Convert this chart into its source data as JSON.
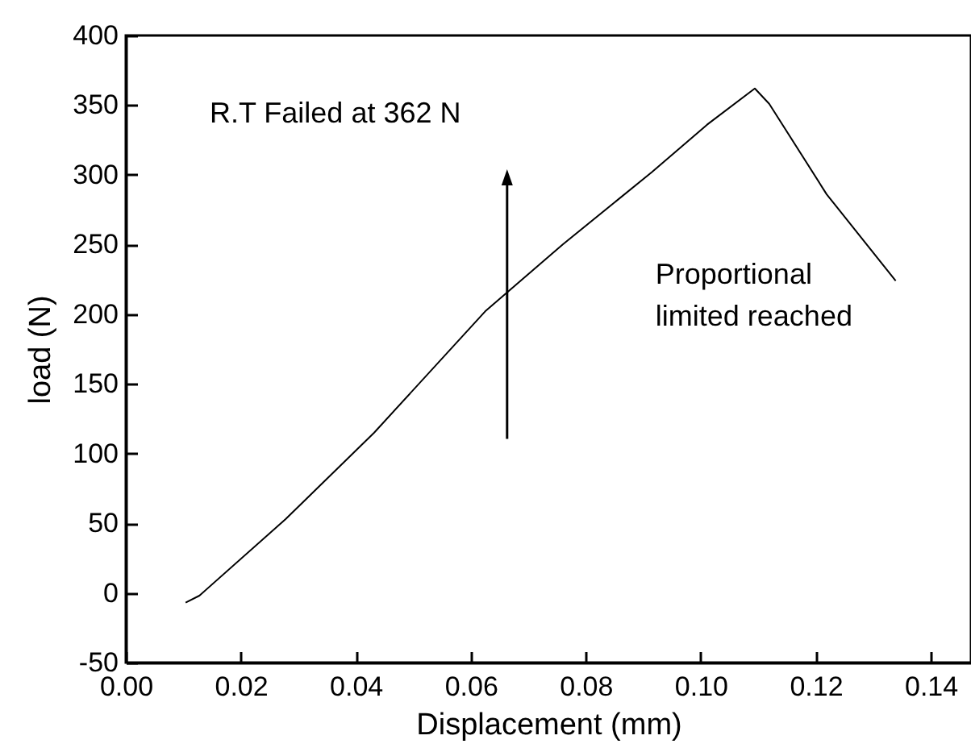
{
  "chart_data": {
    "type": "line",
    "xlabel": "Displacement (mm)",
    "ylabel": "load (N)",
    "x": [
      0.0104,
      0.0128,
      0.0278,
      0.0432,
      0.0625,
      0.076,
      0.0915,
      0.1011,
      0.1094,
      0.1119,
      0.1219,
      0.1339
    ],
    "series": [
      {
        "color": "#000000",
        "values": [
          -7,
          -2,
          53,
          115,
          202,
          250,
          302,
          336,
          362,
          351,
          286,
          224
        ]
      }
    ],
    "xlim": [
      0,
      0.147
    ],
    "xticks": [
      {
        "value": 0,
        "label": "0.00"
      },
      0.02,
      0.04,
      0.06,
      0.08,
      {
        "value": 0.1,
        "label": "0.10"
      },
      0.12,
      0.14
    ],
    "ylim": [
      -50,
      400
    ],
    "yticks": [
      -50,
      0,
      50,
      100,
      150,
      200,
      250,
      300,
      350,
      400
    ],
    "annotations": [
      "R.T Failed at 362 N",
      "Proportional limited reached"
    ],
    "grid": false,
    "legend": false,
    "marker": "none",
    "line_style": "solid"
  }
}
